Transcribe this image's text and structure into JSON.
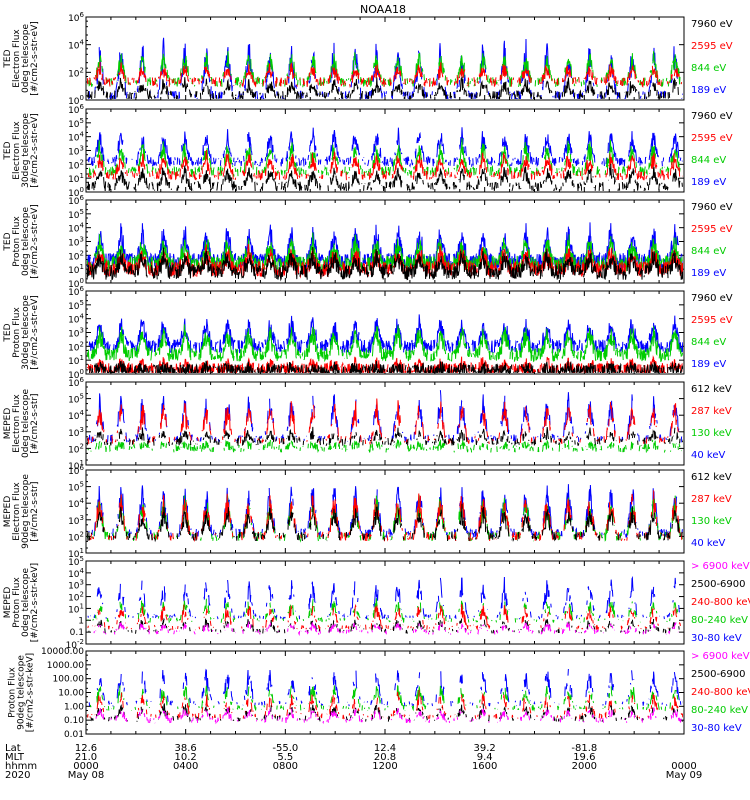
{
  "chart_data": {
    "type": "line",
    "title": "NOAA18",
    "date_start": "May 08",
    "date_end": "May 09",
    "x": {
      "unit": "hhmm",
      "ticks": [
        "0000",
        "0400",
        "0800",
        "1200",
        "1600",
        "2000",
        "0000"
      ],
      "range_hours": [
        0,
        24
      ]
    },
    "footer": {
      "row_labels": [
        "Lat",
        "MLT",
        "hhmm",
        "2020"
      ],
      "lat": [
        "12.6",
        "38.6",
        "-55.0",
        "12.4",
        "39.2",
        "-81.8"
      ],
      "mlt": [
        "21.0",
        "10.2",
        "5.5",
        "20.8",
        "9.4",
        "19.6"
      ],
      "hhmm": [
        "0000",
        "0400",
        "0800",
        "1200",
        "1600",
        "2000",
        "0000"
      ],
      "date_left": "May 08",
      "date_right": "May 09"
    },
    "panels": [
      {
        "ylabel": [
          "TED",
          "Electron Flux",
          "0deg telescope",
          "[#/cm2-s-str-eV]"
        ],
        "yscale": "log",
        "ylim_exp": [
          0,
          6
        ],
        "tick_exps": [
          0,
          2,
          4,
          6
        ],
        "tick_format": "power",
        "legend": [
          {
            "label": "7960 eV",
            "color": "#000000"
          },
          {
            "label": "2595 eV",
            "color": "#ff0000"
          },
          {
            "label": "844 eV",
            "color": "#00cc00"
          },
          {
            "label": "189 eV",
            "color": "#0000ff"
          }
        ],
        "profile": {
          "base": [
            0.3,
            1.3,
            1.3,
            0.3
          ],
          "peak": [
            1.3,
            2.4,
            3.2,
            3.9
          ],
          "noise": 0.5,
          "dens": 0.55
        }
      },
      {
        "ylabel": [
          "TED",
          "Electron Flux",
          "30deg telescope",
          "[#/cm2-s-str-eV]"
        ],
        "yscale": "log",
        "ylim_exp": [
          0,
          6
        ],
        "tick_exps": [
          0,
          1,
          2,
          3,
          4,
          5,
          6
        ],
        "tick_format": "power",
        "legend": [
          {
            "label": "7960 eV",
            "color": "#000000"
          },
          {
            "label": "2595 eV",
            "color": "#ff0000"
          },
          {
            "label": "844 eV",
            "color": "#00cc00"
          },
          {
            "label": "189 eV",
            "color": "#0000ff"
          }
        ],
        "profile": {
          "base": [
            0.4,
            1.2,
            1.5,
            2.2
          ],
          "peak": [
            1.6,
            2.6,
            3.4,
            4.3
          ],
          "noise": 0.5,
          "dens": 0.6
        }
      },
      {
        "ylabel": [
          "TED",
          "Proton Flux",
          "0deg telescope",
          "[#/cm2-s-str-eV]"
        ],
        "yscale": "log",
        "ylim_exp": [
          0,
          6
        ],
        "tick_exps": [
          0,
          1,
          2,
          3,
          4,
          5,
          6
        ],
        "tick_format": "power",
        "legend": [
          {
            "label": "7960 eV",
            "color": "#000000"
          },
          {
            "label": "2595 eV",
            "color": "#ff0000"
          },
          {
            "label": "844 eV",
            "color": "#00cc00"
          },
          {
            "label": "189 eV",
            "color": "#0000ff"
          }
        ],
        "profile": {
          "base": [
            0.8,
            1.0,
            1.4,
            1.6
          ],
          "peak": [
            2.0,
            2.3,
            3.0,
            3.8
          ],
          "noise": 0.8,
          "dens": 0.85
        }
      },
      {
        "ylabel": [
          "TED",
          "Proton Flux",
          "30deg telescope",
          "[#/cm2-s-str-eV]"
        ],
        "yscale": "log",
        "ylim_exp": [
          0,
          6
        ],
        "tick_exps": [
          0,
          1,
          2,
          3,
          4,
          5,
          6
        ],
        "tick_format": "power",
        "legend": [
          {
            "label": "7960 eV",
            "color": "#000000"
          },
          {
            "label": "2595 eV",
            "color": "#ff0000"
          },
          {
            "label": "844 eV",
            "color": "#00cc00"
          },
          {
            "label": "189 eV",
            "color": "#0000ff"
          }
        ],
        "profile": {
          "base": [
            0.2,
            0.3,
            1.4,
            2.0
          ],
          "peak": [
            0.5,
            0.8,
            3.2,
            3.8
          ],
          "noise": 0.7,
          "dens": 0.8
        }
      },
      {
        "ylabel": [
          "MEPED",
          "Electron Flux",
          "0deg telescope",
          "[#/cm2-s-str]"
        ],
        "yscale": "log",
        "ylim_exp": [
          1,
          6
        ],
        "tick_exps": [
          1,
          2,
          3,
          4,
          5,
          6
        ],
        "tick_format": "power",
        "legend": [
          {
            "label": "612 keV",
            "color": "#000000"
          },
          {
            "label": "287 keV",
            "color": "#ff0000"
          },
          {
            "label": "130 keV",
            "color": "#00cc00"
          },
          {
            "label": "40 keV",
            "color": "#0000ff"
          }
        ],
        "profile": {
          "base": [
            2.4,
            2.5,
            2.0,
            2.6
          ],
          "peak": [
            3.0,
            4.6,
            2.3,
            5.0
          ],
          "noise": 0.35,
          "dens": 0.45
        }
      },
      {
        "ylabel": [
          "MEPED",
          "Electron Flux",
          "90deg telescope",
          "[#/cm2-s-str]"
        ],
        "yscale": "log",
        "ylim_exp": [
          1,
          6
        ],
        "tick_exps": [
          1,
          2,
          3,
          4,
          5,
          6
        ],
        "tick_format": "power",
        "legend": [
          {
            "label": "612 keV",
            "color": "#000000"
          },
          {
            "label": "287 keV",
            "color": "#ff0000"
          },
          {
            "label": "130 keV",
            "color": "#00cc00"
          },
          {
            "label": "40 keV",
            "color": "#0000ff"
          }
        ],
        "profile": {
          "base": [
            2.0,
            2.0,
            2.0,
            2.2
          ],
          "peak": [
            3.6,
            4.4,
            4.2,
            5.0
          ],
          "noise": 0.4,
          "dens": 0.5
        }
      },
      {
        "ylabel": [
          "MEPED",
          "Proton Flux",
          "0deg telescope",
          "[#/cm2-s-str-keV]"
        ],
        "yscale": "log",
        "ylim_exp": [
          -2,
          5
        ],
        "tick_exps": [
          -2,
          -1,
          0,
          1,
          2,
          3,
          4,
          5
        ],
        "tick_format": "mixed",
        "legend": [
          {
            "label": "> 6900 keV",
            "color": "#ff00ff"
          },
          {
            "label": "2500-6900",
            "color": "#000000"
          },
          {
            "label": "240-800 keV",
            "color": "#ff0000"
          },
          {
            "label": "80-240 keV",
            "color": "#00cc00"
          },
          {
            "label": "30-80 keV",
            "color": "#0000ff"
          }
        ],
        "profile": {
          "base": [
            -1.0,
            -0.9,
            -0.6,
            0.0,
            0.3
          ],
          "peak": [
            -0.3,
            0.0,
            1.2,
            1.6,
            3.2
          ],
          "noise": 0.3,
          "dens": 0.35
        }
      },
      {
        "ylabel": [
          "Proton Flux",
          "90deg telescope",
          "[#/cm2-s-str-keV]"
        ],
        "yscale": "log",
        "ylim_exp": [
          -2,
          4
        ],
        "tick_exps": [
          -2,
          -1,
          0,
          1,
          2,
          3,
          4
        ],
        "tick_format": "decimal",
        "tick_labels": [
          "0.01",
          "0.10",
          "1.00",
          "10.00",
          "100.00",
          "1000.00",
          "10000.00"
        ],
        "legend": [
          {
            "label": "> 6900 keV",
            "color": "#ff00ff"
          },
          {
            "label": "2500-6900",
            "color": "#000000"
          },
          {
            "label": "240-800 keV",
            "color": "#ff0000"
          },
          {
            "label": "80-240 keV",
            "color": "#00cc00"
          },
          {
            "label": "30-80 keV",
            "color": "#0000ff"
          }
        ],
        "profile": {
          "base": [
            -1.0,
            -0.9,
            -0.7,
            -0.1,
            0.2
          ],
          "peak": [
            -0.3,
            0.0,
            0.8,
            1.4,
            2.6
          ],
          "noise": 0.3,
          "dens": 0.35
        }
      }
    ]
  }
}
